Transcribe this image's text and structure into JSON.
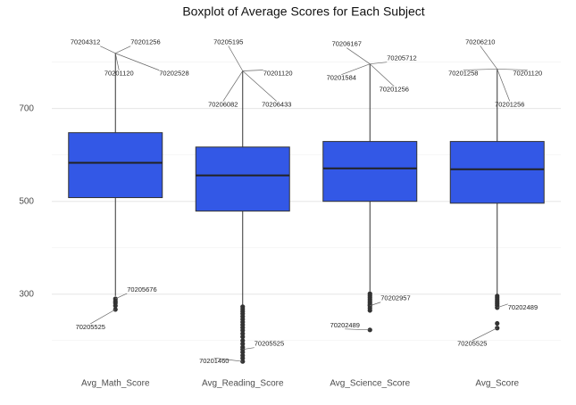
{
  "chart_data": {
    "type": "boxplot",
    "title": "Boxplot of Average Scores for Each Subject",
    "categories": [
      "Avg_Math_Score",
      "Avg_Reading_Score",
      "Avg_Science_Score",
      "Avg_Score"
    ],
    "color": "#3358e6",
    "ylim": [
      140,
      880
    ],
    "yticks": [
      300,
      500,
      700
    ],
    "yminor": [
      200,
      400,
      600,
      800
    ],
    "grid": true,
    "boxes": [
      {
        "q1": 508,
        "median": 583,
        "q3": 648,
        "whisker_low": 296,
        "whisker_high": 819,
        "outliers": [
          290,
          285,
          281,
          275,
          267
        ],
        "annotations": [
          {
            "label": "70204312",
            "value": 819
          },
          {
            "label": "70201256",
            "value": 819
          },
          {
            "label": "70201120",
            "value": 819
          },
          {
            "label": "70202528",
            "value": 819
          },
          {
            "label": "70205676",
            "value": 290
          },
          {
            "label": "70205525",
            "value": 267
          }
        ]
      },
      {
        "q1": 479,
        "median": 556,
        "q3": 617,
        "whisker_low": 277,
        "whisker_high": 781,
        "outliers": [
          273,
          268,
          263,
          258,
          252,
          246,
          240,
          234,
          228,
          222,
          215,
          208,
          200,
          193,
          186,
          181,
          175,
          168,
          162,
          155
        ],
        "annotations": [
          {
            "label": "70205195",
            "value": 781
          },
          {
            "label": "70201120",
            "value": 781
          },
          {
            "label": "70206082",
            "value": 781
          },
          {
            "label": "70206433",
            "value": 781
          },
          {
            "label": "70205525",
            "value": 181
          },
          {
            "label": "70201460",
            "value": 155
          }
        ]
      },
      {
        "q1": 500,
        "median": 571,
        "q3": 629,
        "whisker_low": 306,
        "whisker_high": 796,
        "outliers": [
          301,
          297,
          293,
          289,
          285,
          281,
          277,
          275,
          270,
          265,
          223
        ],
        "annotations": [
          {
            "label": "70206167",
            "value": 796
          },
          {
            "label": "70205712",
            "value": 796
          },
          {
            "label": "70201584",
            "value": 796
          },
          {
            "label": "70201256",
            "value": 796
          },
          {
            "label": "70202957",
            "value": 275
          },
          {
            "label": "70202489",
            "value": 223
          }
        ]
      },
      {
        "q1": 496,
        "median": 569,
        "q3": 629,
        "whisker_low": 300,
        "whisker_high": 785,
        "outliers": [
          296,
          292,
          288,
          284,
          280,
          276,
          271,
          237,
          227
        ],
        "annotations": [
          {
            "label": "70206210",
            "value": 785
          },
          {
            "label": "70201258",
            "value": 785
          },
          {
            "label": "70201120",
            "value": 785
          },
          {
            "label": "70201256",
            "value": 785
          },
          {
            "label": "70202489",
            "value": 271
          },
          {
            "label": "70205525",
            "value": 227
          }
        ]
      }
    ]
  }
}
